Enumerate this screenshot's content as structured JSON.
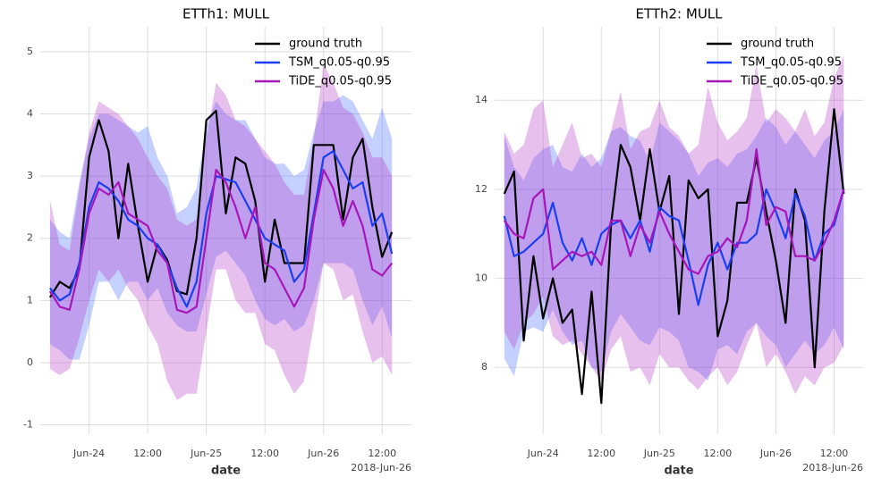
{
  "chart_data": [
    {
      "type": "line",
      "title": "ETTh1: MULL",
      "xlabel": "date",
      "x_offset_label": "2018-Jun-26",
      "grid": true,
      "legend": "upper right",
      "x": [
        "2018-06-23 16:00",
        "2018-06-23 18:00",
        "2018-06-23 20:00",
        "2018-06-23 22:00",
        "2018-06-24 00:00",
        "2018-06-24 02:00",
        "2018-06-24 04:00",
        "2018-06-24 06:00",
        "2018-06-24 08:00",
        "2018-06-24 10:00",
        "2018-06-24 12:00",
        "2018-06-24 14:00",
        "2018-06-24 16:00",
        "2018-06-24 18:00",
        "2018-06-24 20:00",
        "2018-06-24 22:00",
        "2018-06-25 00:00",
        "2018-06-25 02:00",
        "2018-06-25 04:00",
        "2018-06-25 06:00",
        "2018-06-25 08:00",
        "2018-06-25 10:00",
        "2018-06-25 12:00",
        "2018-06-25 14:00",
        "2018-06-25 16:00",
        "2018-06-25 18:00",
        "2018-06-25 20:00",
        "2018-06-25 22:00",
        "2018-06-26 00:00",
        "2018-06-26 02:00",
        "2018-06-26 04:00",
        "2018-06-26 06:00",
        "2018-06-26 08:00",
        "2018-06-26 10:00",
        "2018-06-26 12:00",
        "2018-06-26 14:00"
      ],
      "xlim": [
        "2018-06-23 14:00",
        "2018-06-26 18:00"
      ],
      "xticks": [
        {
          "value": "2018-06-24 00:00",
          "label": "Jun-24"
        },
        {
          "value": "2018-06-24 12:00",
          "label": "12:00"
        },
        {
          "value": "2018-06-25 00:00",
          "label": "Jun-25"
        },
        {
          "value": "2018-06-25 12:00",
          "label": "12:00"
        },
        {
          "value": "2018-06-26 00:00",
          "label": "Jun-26"
        },
        {
          "value": "2018-06-26 12:00",
          "label": "12:00"
        }
      ],
      "ylim": [
        -1.15,
        5.4
      ],
      "yticks": [
        -1,
        0,
        1,
        2,
        3,
        4,
        5
      ],
      "series": [
        {
          "name": "ground truth",
          "color": "#000000",
          "values": [
            1.05,
            1.3,
            1.2,
            1.5,
            3.3,
            3.9,
            3.4,
            2.0,
            3.2,
            2.2,
            1.3,
            1.9,
            1.65,
            1.15,
            1.1,
            2.0,
            3.9,
            4.05,
            2.4,
            3.3,
            3.2,
            2.6,
            1.3,
            2.3,
            1.6,
            1.6,
            1.6,
            3.5,
            3.5,
            3.5,
            2.3,
            3.3,
            3.6,
            2.5,
            1.7,
            2.1
          ]
        },
        {
          "name": "TSM_q0.05-q0.95",
          "color": "#1a3ff0",
          "values": [
            1.2,
            1.0,
            1.1,
            1.6,
            2.5,
            2.9,
            2.8,
            2.6,
            2.3,
            2.2,
            2.0,
            1.9,
            1.6,
            1.2,
            0.9,
            1.3,
            2.4,
            3.0,
            2.95,
            2.9,
            2.6,
            2.3,
            2.0,
            1.9,
            1.8,
            1.3,
            1.5,
            2.4,
            3.3,
            3.4,
            3.1,
            2.8,
            2.9,
            2.2,
            2.4,
            1.75
          ],
          "lower": [
            0.3,
            0.2,
            0.05,
            0.05,
            0.6,
            1.3,
            1.3,
            1.0,
            1.3,
            1.3,
            1.0,
            1.2,
            0.8,
            0.6,
            0.5,
            0.5,
            1.1,
            1.7,
            1.8,
            1.6,
            1.4,
            1.0,
            0.7,
            0.6,
            0.7,
            0.5,
            0.6,
            1.0,
            1.6,
            1.6,
            1.6,
            1.5,
            1.0,
            0.6,
            0.9,
            0.4
          ],
          "upper": [
            2.3,
            2.1,
            2.0,
            2.9,
            3.6,
            4.0,
            4.0,
            3.9,
            3.8,
            3.7,
            3.8,
            3.3,
            3.0,
            2.4,
            2.5,
            2.8,
            3.8,
            4.2,
            4.0,
            3.9,
            3.9,
            3.6,
            3.3,
            3.2,
            3.2,
            3.0,
            3.1,
            3.7,
            4.2,
            4.2,
            4.3,
            4.2,
            3.9,
            3.6,
            4.1,
            3.6
          ]
        },
        {
          "name": "TiDE_q0.05-q0.95",
          "color": "#a815b8",
          "values": [
            1.15,
            0.9,
            0.85,
            1.5,
            2.4,
            2.8,
            2.7,
            2.9,
            2.4,
            2.3,
            2.2,
            1.8,
            1.6,
            0.85,
            0.8,
            0.9,
            2.0,
            3.1,
            2.9,
            2.5,
            2.0,
            2.5,
            1.6,
            1.5,
            1.2,
            0.9,
            1.2,
            2.3,
            3.1,
            2.8,
            2.2,
            2.6,
            2.2,
            1.5,
            1.4,
            1.6
          ],
          "lower": [
            -0.1,
            -0.2,
            -0.1,
            0.4,
            1.0,
            1.5,
            1.3,
            1.5,
            1.2,
            1.0,
            0.6,
            0.3,
            -0.3,
            -0.6,
            -0.5,
            -0.5,
            0.5,
            1.5,
            1.5,
            1.0,
            0.8,
            0.8,
            0.3,
            0.2,
            -0.2,
            -0.5,
            -0.3,
            0.6,
            1.6,
            1.5,
            1.0,
            1.1,
            0.5,
            0.0,
            0.1,
            -0.2
          ],
          "upper": [
            2.6,
            1.9,
            1.8,
            2.8,
            3.7,
            4.2,
            4.1,
            4.0,
            3.8,
            3.6,
            3.3,
            3.0,
            2.8,
            2.3,
            2.2,
            2.3,
            3.6,
            4.5,
            4.3,
            3.9,
            3.8,
            3.6,
            3.4,
            3.2,
            2.9,
            2.7,
            2.7,
            3.6,
            4.8,
            4.5,
            4.1,
            4.0,
            3.7,
            3.3,
            3.3,
            3.0
          ]
        }
      ]
    },
    {
      "type": "line",
      "title": "ETTh2: MULL",
      "xlabel": "date",
      "x_offset_label": "2018-Jun-26",
      "grid": true,
      "legend": "upper right",
      "x": [
        "2018-06-23 16:00",
        "2018-06-23 18:00",
        "2018-06-23 20:00",
        "2018-06-23 22:00",
        "2018-06-24 00:00",
        "2018-06-24 02:00",
        "2018-06-24 04:00",
        "2018-06-24 06:00",
        "2018-06-24 08:00",
        "2018-06-24 10:00",
        "2018-06-24 12:00",
        "2018-06-24 14:00",
        "2018-06-24 16:00",
        "2018-06-24 18:00",
        "2018-06-24 20:00",
        "2018-06-24 22:00",
        "2018-06-25 00:00",
        "2018-06-25 02:00",
        "2018-06-25 04:00",
        "2018-06-25 06:00",
        "2018-06-25 08:00",
        "2018-06-25 10:00",
        "2018-06-25 12:00",
        "2018-06-25 14:00",
        "2018-06-25 16:00",
        "2018-06-25 18:00",
        "2018-06-25 20:00",
        "2018-06-25 22:00",
        "2018-06-26 00:00",
        "2018-06-26 02:00",
        "2018-06-26 04:00",
        "2018-06-26 06:00",
        "2018-06-26 08:00",
        "2018-06-26 10:00",
        "2018-06-26 12:00",
        "2018-06-26 14:00"
      ],
      "xlim": [
        "2018-06-23 14:00",
        "2018-06-26 18:00"
      ],
      "xticks": [
        {
          "value": "2018-06-24 00:00",
          "label": "Jun-24"
        },
        {
          "value": "2018-06-24 12:00",
          "label": "12:00"
        },
        {
          "value": "2018-06-25 00:00",
          "label": "Jun-25"
        },
        {
          "value": "2018-06-25 12:00",
          "label": "12:00"
        },
        {
          "value": "2018-06-26 00:00",
          "label": "Jun-26"
        },
        {
          "value": "2018-06-26 12:00",
          "label": "12:00"
        }
      ],
      "ylim": [
        6.5,
        15.65
      ],
      "yticks": [
        8,
        10,
        12,
        14
      ],
      "series": [
        {
          "name": "ground truth",
          "color": "#000000",
          "values": [
            11.9,
            12.4,
            8.6,
            10.5,
            9.1,
            10.0,
            9.0,
            9.3,
            7.4,
            9.7,
            7.2,
            11.2,
            13.0,
            12.5,
            11.3,
            12.9,
            11.5,
            12.3,
            9.2,
            12.2,
            11.8,
            12.0,
            8.7,
            9.5,
            11.7,
            11.7,
            12.7,
            11.5,
            10.4,
            9.0,
            12.0,
            11.3,
            8.0,
            11.5,
            13.8,
            11.9
          ]
        },
        {
          "name": "TSM_q0.05-q0.95",
          "color": "#1a3ff0",
          "values": [
            11.4,
            10.5,
            10.6,
            10.8,
            11.0,
            11.7,
            10.8,
            10.4,
            10.9,
            10.3,
            11.0,
            11.2,
            11.3,
            10.9,
            11.3,
            10.6,
            11.6,
            11.4,
            11.3,
            10.4,
            9.4,
            10.3,
            10.8,
            10.2,
            10.8,
            10.8,
            11.0,
            12.0,
            11.5,
            10.9,
            11.9,
            11.4,
            10.4,
            11.0,
            11.2,
            12.0
          ],
          "lower": [
            8.2,
            7.8,
            8.8,
            8.9,
            8.8,
            9.3,
            8.8,
            8.5,
            8.6,
            8.0,
            7.9,
            8.8,
            9.2,
            8.9,
            8.6,
            8.5,
            8.9,
            8.8,
            8.6,
            8.0,
            7.9,
            7.7,
            8.4,
            8.5,
            8.3,
            8.8,
            9.0,
            8.7,
            8.5,
            8.0,
            8.3,
            8.6,
            8.3,
            8.5,
            8.9,
            8.4
          ],
          "upper": [
            13.2,
            12.5,
            12.2,
            12.7,
            12.9,
            13.0,
            12.5,
            12.4,
            12.8,
            12.5,
            12.7,
            13.3,
            13.4,
            13.2,
            13.1,
            12.6,
            13.5,
            13.3,
            13.1,
            12.8,
            12.3,
            12.6,
            12.7,
            12.5,
            12.8,
            12.9,
            13.2,
            13.6,
            13.4,
            13.0,
            13.3,
            13.0,
            12.7,
            13.1,
            13.3,
            13.8
          ]
        },
        {
          "name": "TiDE_q0.05-q0.95",
          "color": "#a815b8",
          "values": [
            11.3,
            11.0,
            10.9,
            11.8,
            12.0,
            10.2,
            10.4,
            10.6,
            10.5,
            10.6,
            10.3,
            11.3,
            11.3,
            10.5,
            11.2,
            10.8,
            11.5,
            11.0,
            10.6,
            10.2,
            10.1,
            10.5,
            10.6,
            10.9,
            10.7,
            11.3,
            12.9,
            11.2,
            11.6,
            11.5,
            10.5,
            10.5,
            10.4,
            10.8,
            11.3,
            12.0
          ],
          "lower": [
            8.8,
            8.4,
            9.0,
            9.2,
            9.6,
            8.7,
            8.5,
            8.6,
            8.3,
            8.0,
            7.7,
            8.4,
            8.7,
            7.9,
            8.0,
            7.6,
            8.3,
            8.0,
            8.0,
            7.7,
            7.5,
            7.8,
            8.0,
            7.6,
            7.9,
            8.5,
            9.0,
            8.0,
            8.3,
            7.9,
            7.4,
            7.8,
            7.6,
            8.0,
            8.1,
            8.5
          ],
          "upper": [
            13.3,
            12.8,
            13.0,
            13.8,
            14.0,
            12.5,
            13.0,
            13.5,
            12.7,
            12.8,
            12.5,
            13.3,
            14.2,
            12.9,
            13.3,
            13.4,
            14.0,
            13.4,
            13.2,
            12.8,
            13.0,
            14.3,
            13.5,
            13.1,
            13.3,
            13.6,
            14.8,
            13.5,
            13.8,
            13.6,
            13.3,
            13.8,
            13.2,
            13.5,
            14.5,
            15.0
          ]
        }
      ]
    }
  ]
}
